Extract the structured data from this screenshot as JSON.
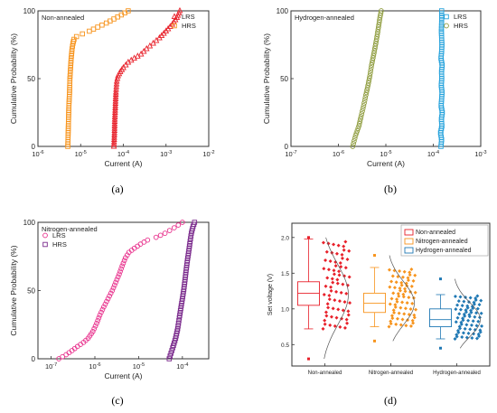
{
  "chart_data": [
    {
      "type": "scatter",
      "panel_label": "(a)",
      "title": "Non-annealed",
      "xlabel": "Current (A)",
      "ylabel": "Cumulative Probability (%)",
      "x_scale": "log",
      "xlim": [
        1e-06,
        0.01
      ],
      "ylim": [
        0,
        100
      ],
      "x_ticks": [
        {
          "value": 1e-06,
          "base": "10",
          "exp": "-6"
        },
        {
          "value": 1e-05,
          "base": "10",
          "exp": "-5"
        },
        {
          "value": 0.0001,
          "base": "10",
          "exp": "-4"
        },
        {
          "value": 0.001,
          "base": "10",
          "exp": "-3"
        },
        {
          "value": 0.01,
          "base": "10",
          "exp": "-2"
        }
      ],
      "y_ticks": [
        "0",
        "50",
        "100"
      ],
      "legend_position": "top-right",
      "series": [
        {
          "name": "LRS",
          "marker": "triangle",
          "color": "#e8202a",
          "x": [
            6e-05,
            6.2e-05,
            6.3e-05,
            6.5e-05,
            6.7e-05,
            7e-05,
            7.5e-05,
            8.5e-05,
            0.0001,
            0.00013,
            0.00018,
            0.00026,
            0.00035,
            0.0005,
            0.0007,
            0.001,
            0.0014,
            0.0018,
            0.0021
          ],
          "y": [
            0,
            10,
            20,
            30,
            40,
            48,
            52,
            55,
            58,
            62,
            65,
            68,
            72,
            76,
            80,
            85,
            90,
            95,
            100
          ]
        },
        {
          "name": "HRS",
          "marker": "square",
          "color": "#f7941d",
          "x": [
            5e-06,
            5.1e-06,
            5.2e-06,
            5.3e-06,
            5.5e-06,
            5.6e-06,
            5.8e-06,
            6e-06,
            6.3e-06,
            6.6e-06,
            7e-06,
            8e-06,
            1.1e-05,
            1.6e-05,
            2.5e-05,
            4e-05,
            6e-05,
            9e-05,
            0.00013
          ],
          "y": [
            0,
            10,
            20,
            30,
            40,
            50,
            58,
            65,
            72,
            76,
            79,
            81,
            83,
            85,
            88,
            91,
            94,
            97,
            100
          ]
        }
      ]
    },
    {
      "type": "scatter",
      "panel_label": "(b)",
      "title": "Hydrogen-annealed",
      "xlabel": "Current (A)",
      "ylabel": "Cumulative Probability (%)",
      "x_scale": "log",
      "xlim": [
        1e-07,
        0.001
      ],
      "ylim": [
        0,
        100
      ],
      "x_ticks": [
        {
          "value": 1e-07,
          "base": "10",
          "exp": "-7"
        },
        {
          "value": 1e-06,
          "base": "10",
          "exp": "-6"
        },
        {
          "value": 1e-05,
          "base": "10",
          "exp": "-5"
        },
        {
          "value": 0.0001,
          "base": "10",
          "exp": "-4"
        },
        {
          "value": 0.001,
          "base": "10",
          "exp": "-3"
        }
      ],
      "y_ticks": [
        "0",
        "50",
        "100"
      ],
      "legend_position": "top-right",
      "series": [
        {
          "name": "LRS",
          "marker": "square",
          "color": "#29a3dc",
          "x": [
            0.000145,
            0.00015,
            0.000142,
            0.000152,
            0.000148,
            0.000155,
            0.000146,
            0.00015,
            0.000153,
            0.000147,
            0.000151,
            0.000149,
            0.000154,
            0.000145,
            0.00015,
            0.000152,
            0.000148,
            0.00015,
            0.00015
          ],
          "y": [
            0,
            5,
            10,
            15,
            20,
            25,
            30,
            35,
            40,
            45,
            50,
            55,
            60,
            65,
            70,
            75,
            85,
            93,
            100
          ]
        },
        {
          "name": "HRS",
          "marker": "circle",
          "color": "#8c9a3a",
          "x": [
            2e-06,
            2.3e-06,
            2.7e-06,
            3e-06,
            3.4e-06,
            3.8e-06,
            4.2e-06,
            4.6e-06,
            5e-06,
            5.5e-06,
            6e-06,
            6.5e-06,
            7e-06,
            7.5e-06,
            8e-06
          ],
          "y": [
            0,
            8,
            15,
            22,
            30,
            38,
            45,
            52,
            60,
            67,
            74,
            81,
            88,
            95,
            100
          ]
        }
      ]
    },
    {
      "type": "scatter",
      "panel_label": "(c)",
      "title": "Nitrogen-annealed",
      "xlabel": "Current (A)",
      "ylabel": "Cumulative Probability (%)",
      "x_scale": "log",
      "xlim": [
        5e-08,
        0.0004
      ],
      "ylim": [
        0,
        100
      ],
      "x_ticks": [
        {
          "value": 1e-07,
          "base": "10",
          "exp": "-7"
        },
        {
          "value": 1e-06,
          "base": "10",
          "exp": "-6"
        },
        {
          "value": 1e-05,
          "base": "10",
          "exp": "-5"
        },
        {
          "value": 0.0001,
          "base": "10",
          "exp": "-4"
        }
      ],
      "y_ticks": [
        "0",
        "50",
        "100"
      ],
      "legend_position": "top-left",
      "series": [
        {
          "name": "LRS",
          "marker": "circle",
          "color": "#e8308c",
          "x": [
            1.5e-07,
            2.2e-07,
            3e-07,
            4e-07,
            5.5e-07,
            7e-07,
            9e-07,
            1.1e-06,
            1.3e-06,
            1.6e-06,
            2e-06,
            2.5e-06,
            3e-06,
            3.6e-06,
            4.2e-06,
            5e-06,
            6e-06,
            8e-06,
            1.1e-05,
            1.6e-05,
            2.5e-05,
            4e-05,
            6.5e-05,
            0.0001
          ],
          "y": [
            0,
            3,
            6,
            9,
            12,
            15,
            20,
            26,
            32,
            38,
            44,
            50,
            56,
            62,
            68,
            74,
            78,
            81,
            84,
            87,
            89,
            92,
            96,
            100
          ]
        },
        {
          "name": "HRS",
          "marker": "square",
          "color": "#7a2a8c",
          "x": [
            5e-05,
            6e-05,
            7e-05,
            7.8e-05,
            8.5e-05,
            9.2e-05,
            0.0001,
            0.000108,
            0.000115,
            0.000122,
            0.00013,
            0.00014,
            0.00015,
            0.00016,
            0.000175,
            0.00019
          ],
          "y": [
            0,
            8,
            15,
            22,
            30,
            37,
            44,
            51,
            58,
            65,
            72,
            79,
            86,
            92,
            97,
            100
          ]
        }
      ]
    },
    {
      "type": "box",
      "panel_label": "(d)",
      "title": "",
      "xlabel": "",
      "ylabel": "Set voltage (V)",
      "ylim": [
        0.2,
        2.2
      ],
      "y_ticks": [
        {
          "value": 0.5,
          "label": "0.5"
        },
        {
          "value": 1.0,
          "label": "1.0"
        },
        {
          "value": 1.5,
          "label": "1.5"
        },
        {
          "value": 2.0,
          "label": "2.0"
        }
      ],
      "categories": [
        "Non-annealed",
        "Nitrogen-annealed",
        "Hydrogen-annealed"
      ],
      "legend_position": "top-right",
      "series": [
        {
          "name": "Non-annealed",
          "color": "#e8202a",
          "mean": 1.2,
          "q1": 1.05,
          "median": 1.22,
          "q3": 1.38,
          "whisker_low": 0.72,
          "whisker_high": 1.98,
          "min": 0.3,
          "max": 2.0
        },
        {
          "name": "Nitrogen-annealed",
          "color": "#f7941d",
          "mean": 1.08,
          "q1": 0.95,
          "median": 1.08,
          "q3": 1.22,
          "whisker_low": 0.75,
          "whisker_high": 1.58,
          "min": 0.55,
          "max": 1.75
        },
        {
          "name": "Hydrogen-annealed",
          "color": "#1f78b4",
          "mean": 0.85,
          "q1": 0.75,
          "median": 0.85,
          "q3": 1.0,
          "whisker_low": 0.58,
          "whisker_high": 1.2,
          "min": 0.45,
          "max": 1.42
        }
      ]
    }
  ]
}
